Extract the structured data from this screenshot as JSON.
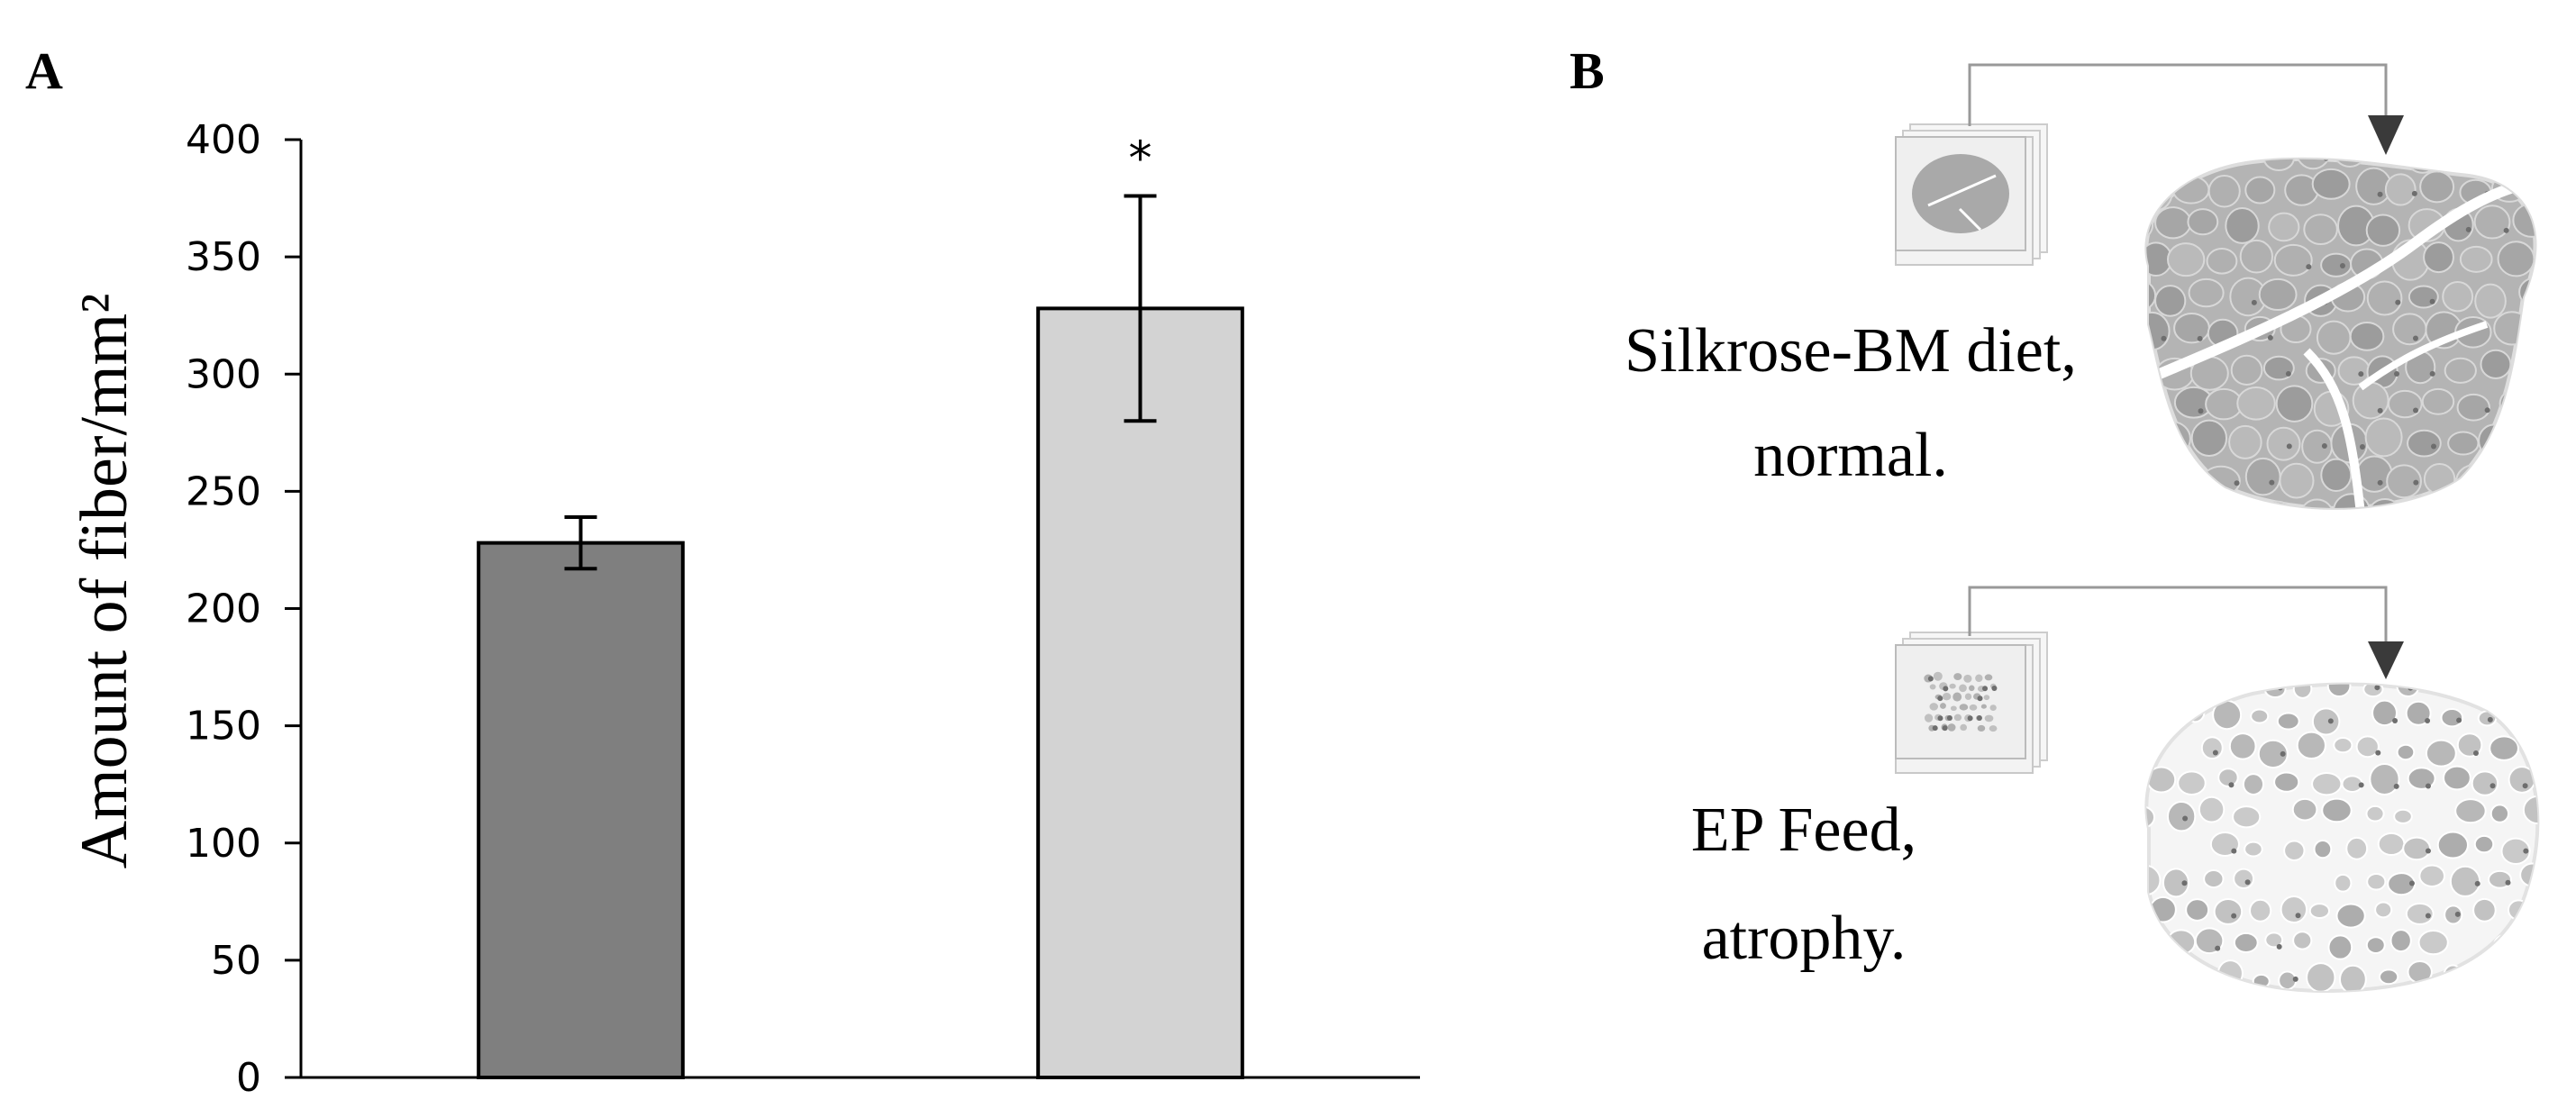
{
  "panels": {
    "a_label": "A",
    "b_label": "B"
  },
  "chart_data": {
    "type": "bar",
    "categories": [
      "",
      ""
    ],
    "values": [
      228,
      328
    ],
    "error": [
      11,
      48
    ],
    "significance": [
      "",
      "*"
    ],
    "colors": [
      "#7f7f7f",
      "#d3d3d3"
    ],
    "title": "",
    "xlabel": "",
    "ylabel": "Amount of fiber/mm²",
    "ylim": [
      0,
      400
    ],
    "yticks": [
      0,
      50,
      100,
      150,
      200,
      250,
      300,
      350,
      400
    ],
    "grid": false
  },
  "illustration": {
    "normal_caption_line1": "Silkrose-BM diet,",
    "normal_caption_line2": "normal.",
    "atrophy_caption_line1": "EP Feed,",
    "atrophy_caption_line2": "atrophy.",
    "normal_icon": "muscle-cross-section-normal",
    "atrophy_icon": "muscle-cross-section-atrophy"
  }
}
